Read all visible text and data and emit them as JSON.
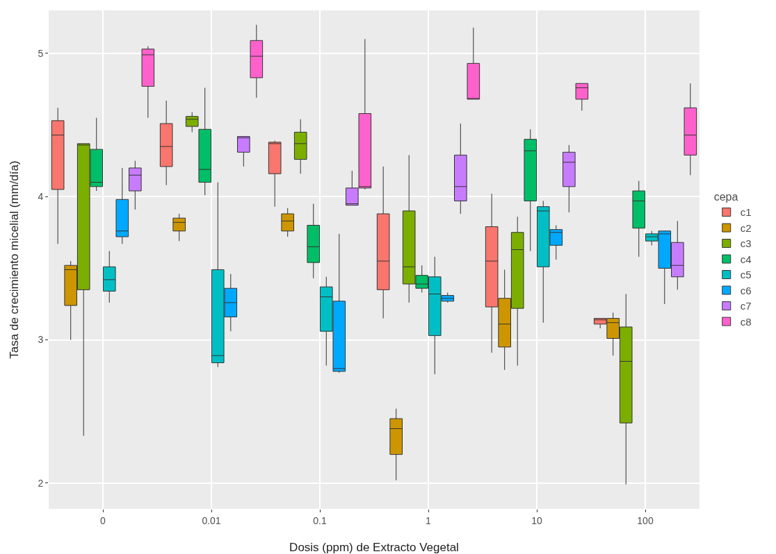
{
  "chart_data": {
    "type": "box",
    "xlabel": "Dosis (ppm) de Extracto Vegetal",
    "ylabel": "Tasa de crecimiento micelial (mm/día)",
    "legend_title": "cepa",
    "legend": "right",
    "grid": true,
    "categories": [
      "0",
      "0.01",
      "0.1",
      "1",
      "10",
      "100"
    ],
    "ylim": [
      1.82,
      5.3
    ],
    "yticks": [
      2,
      3,
      4,
      5
    ],
    "series": [
      {
        "name": "c1",
        "color": "#f8766d",
        "boxes": [
          {
            "low": 3.67,
            "q1": 4.05,
            "median": 4.43,
            "q3": 4.53,
            "high": 4.62
          },
          {
            "low": 4.08,
            "q1": 4.21,
            "median": 4.35,
            "q3": 4.51,
            "high": 4.67
          },
          {
            "low": 3.93,
            "q1": 4.16,
            "median": 4.37,
            "q3": 4.38,
            "high": 4.39
          },
          {
            "low": 3.15,
            "q1": 3.35,
            "median": 3.55,
            "q3": 3.88,
            "high": 4.21
          },
          {
            "low": 2.91,
            "q1": 3.23,
            "median": 3.55,
            "q3": 3.79,
            "high": 4.02
          },
          {
            "low": 3.08,
            "q1": 3.11,
            "median": 3.14,
            "q3": 3.15,
            "high": 3.15
          }
        ]
      },
      {
        "name": "c2",
        "color": "#cd9600",
        "boxes": [
          {
            "low": 3.0,
            "q1": 3.24,
            "median": 3.49,
            "q3": 3.52,
            "high": 3.55
          },
          {
            "low": 3.69,
            "q1": 3.76,
            "median": 3.82,
            "q3": 3.85,
            "high": 3.88
          },
          {
            "low": 3.72,
            "q1": 3.76,
            "median": 3.83,
            "q3": 3.88,
            "high": 3.92
          },
          {
            "low": 2.02,
            "q1": 2.2,
            "median": 2.38,
            "q3": 2.45,
            "high": 2.52
          },
          {
            "low": 2.79,
            "q1": 2.95,
            "median": 3.11,
            "q3": 3.29,
            "high": 3.49
          },
          {
            "low": 2.89,
            "q1": 3.01,
            "median": 3.12,
            "q3": 3.15,
            "high": 3.19
          }
        ]
      },
      {
        "name": "c3",
        "color": "#7cae00",
        "boxes": [
          {
            "low": 2.33,
            "q1": 3.35,
            "median": 4.36,
            "q3": 4.37,
            "high": 4.37
          },
          {
            "low": 4.45,
            "q1": 4.49,
            "median": 4.54,
            "q3": 4.56,
            "high": 4.59
          },
          {
            "low": 4.16,
            "q1": 4.26,
            "median": 4.37,
            "q3": 4.45,
            "high": 4.54
          },
          {
            "low": 3.26,
            "q1": 3.39,
            "median": 3.51,
            "q3": 3.9,
            "high": 4.29
          },
          {
            "low": 2.82,
            "q1": 3.22,
            "median": 3.63,
            "q3": 3.75,
            "high": 3.86
          },
          {
            "low": 1.99,
            "q1": 2.42,
            "median": 2.85,
            "q3": 3.09,
            "high": 3.32
          }
        ]
      },
      {
        "name": "c4",
        "color": "#00be67",
        "boxes": [
          {
            "low": 4.04,
            "q1": 4.07,
            "median": 4.1,
            "q3": 4.33,
            "high": 4.55
          },
          {
            "low": 4.01,
            "q1": 4.1,
            "median": 4.19,
            "q3": 4.47,
            "high": 4.76
          },
          {
            "low": 3.43,
            "q1": 3.54,
            "median": 3.65,
            "q3": 3.8,
            "high": 3.95
          },
          {
            "low": 3.33,
            "q1": 3.36,
            "median": 3.39,
            "q3": 3.45,
            "high": 3.52
          },
          {
            "low": 3.62,
            "q1": 3.97,
            "median": 4.32,
            "q3": 4.4,
            "high": 4.47
          },
          {
            "low": 3.58,
            "q1": 3.78,
            "median": 3.97,
            "q3": 4.04,
            "high": 4.11
          }
        ]
      },
      {
        "name": "c5",
        "color": "#00bfc4",
        "boxes": [
          {
            "low": 3.26,
            "q1": 3.34,
            "median": 3.42,
            "q3": 3.51,
            "high": 3.62
          },
          {
            "low": 2.81,
            "q1": 2.84,
            "median": 2.89,
            "q3": 3.49,
            "high": 4.1
          },
          {
            "low": 2.82,
            "q1": 3.06,
            "median": 3.3,
            "q3": 3.37,
            "high": 3.44
          },
          {
            "low": 2.76,
            "q1": 3.03,
            "median": 3.32,
            "q3": 3.44,
            "high": 3.58
          },
          {
            "low": 3.12,
            "q1": 3.51,
            "median": 3.9,
            "q3": 3.93,
            "high": 3.97
          },
          {
            "low": 3.66,
            "q1": 3.69,
            "median": 3.72,
            "q3": 3.74,
            "high": 3.76
          }
        ]
      },
      {
        "name": "c6",
        "color": "#00a9ff",
        "boxes": [
          {
            "low": 3.67,
            "q1": 3.72,
            "median": 3.76,
            "q3": 3.98,
            "high": 4.2
          },
          {
            "low": 3.06,
            "q1": 3.16,
            "median": 3.26,
            "q3": 3.36,
            "high": 3.46
          },
          {
            "low": 2.77,
            "q1": 2.78,
            "median": 2.8,
            "q3": 3.27,
            "high": 3.74
          },
          {
            "low": 3.26,
            "q1": 3.27,
            "median": 3.29,
            "q3": 3.31,
            "high": 3.33
          },
          {
            "low": 3.56,
            "q1": 3.66,
            "median": 3.75,
            "q3": 3.77,
            "high": 3.8
          },
          {
            "low": 3.25,
            "q1": 3.5,
            "median": 3.74,
            "q3": 3.76,
            "high": 3.76
          }
        ]
      },
      {
        "name": "c7",
        "color": "#c77cff",
        "boxes": [
          {
            "low": 3.91,
            "q1": 4.04,
            "median": 4.15,
            "q3": 4.2,
            "high": 4.25
          },
          {
            "low": 4.21,
            "q1": 4.31,
            "median": 4.41,
            "q3": 4.42,
            "high": 4.42
          },
          {
            "low": 3.94,
            "q1": 3.94,
            "median": 3.95,
            "q3": 4.06,
            "high": 4.18
          },
          {
            "low": 3.88,
            "q1": 3.97,
            "median": 4.07,
            "q3": 4.29,
            "high": 4.51
          },
          {
            "low": 3.89,
            "q1": 4.07,
            "median": 4.24,
            "q3": 4.31,
            "high": 4.36
          },
          {
            "low": 3.35,
            "q1": 3.44,
            "median": 3.52,
            "q3": 3.68,
            "high": 3.83
          }
        ]
      },
      {
        "name": "c8",
        "color": "#ff61cc",
        "boxes": [
          {
            "low": 4.55,
            "q1": 4.77,
            "median": 4.99,
            "q3": 5.03,
            "high": 5.05
          },
          {
            "low": 4.69,
            "q1": 4.83,
            "median": 4.98,
            "q3": 5.09,
            "high": 5.2
          },
          {
            "low": 4.05,
            "q1": 4.06,
            "median": 4.07,
            "q3": 4.58,
            "high": 5.1
          },
          {
            "low": 4.68,
            "q1": 4.68,
            "median": 4.68,
            "q3": 4.93,
            "high": 5.18
          },
          {
            "low": 4.6,
            "q1": 4.68,
            "median": 4.76,
            "q3": 4.79,
            "high": 4.79
          },
          {
            "low": 4.15,
            "q1": 4.29,
            "median": 4.43,
            "q3": 4.62,
            "high": 4.79
          }
        ]
      }
    ]
  }
}
